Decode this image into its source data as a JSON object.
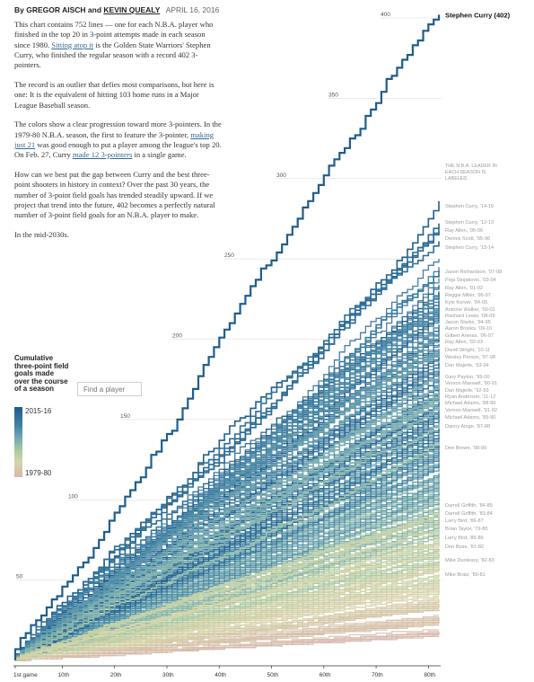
{
  "byline": {
    "prefix": "By",
    "author1": "GREGOR AISCH",
    "and": "and",
    "author2": "KEVIN QUEALY",
    "date": "APRIL 16, 2016"
  },
  "intro": {
    "p1_a": "This chart contains 752 lines — one for each N.B.A. player who finished in the top 20 in 3-point attempts made in each season since 1980. ",
    "p1_link": "Sitting atop it",
    "p1_b": " is the Golden State Warriors' Stephen Curry, who finished the regular season with a record 402 3-pointers.",
    "p2": "The record is an outlier that defies most comparisons, but here is one: It is the equivalent of hitting 103 home runs in a Major League Baseball season.",
    "p3_a": "The colors show a clear progression toward more 3-pointers. In the 1979-80 N.B.A. season, the first to feature the 3-pointer, ",
    "p3_link1": "making just 21",
    "p3_b": " was good enough to put a player among the league's top 20. On Feb. 27, Curry ",
    "p3_link2": "made 12 3-pointers",
    "p3_c": " in a single game.",
    "p4": "How can we best put the gap between Curry and the best three-point shooters in history in context? Over the past 30 years, the number of 3-point field goals has trended steadily upward. If we project that trend into the future, 402 becomes a perfectly natural number of 3-point field goals for an N.B.A. player to make.",
    "p5": "In the mid-2030s."
  },
  "legend": {
    "title": "Cumulative three-point field goals made over the course of a season",
    "top": "2015-16",
    "bottom": "1979-80"
  },
  "search": {
    "placeholder": "Find a player"
  },
  "colors": {
    "latest": "#1f5d8c",
    "earliest": "#d7b7aa",
    "label_grey": "#9a9a9a"
  },
  "chart_data": {
    "type": "line",
    "title": "",
    "xlabel": "",
    "ylabel": "",
    "x_ticks": [
      "1st game",
      "10th",
      "20th",
      "30th",
      "40th",
      "50th",
      "60th",
      "70th",
      "80th"
    ],
    "y_ticks": [
      50,
      100,
      150,
      200,
      250,
      300,
      350,
      400
    ],
    "xlim": [
      1,
      82
    ],
    "ylim": [
      0,
      410
    ],
    "note": "THE N.B.A. LEADER IN EACH SEASON IS LABELED.",
    "series_count": 752,
    "highlight": {
      "name": "Stephen Curry (402)",
      "final": 402
    },
    "leaders": [
      {
        "label": "Stephen Curry, '14-15",
        "final": 286
      },
      {
        "label": "Stephen Curry, '12-13",
        "final": 272
      },
      {
        "label": "Ray Allen, '05-06",
        "final": 269
      },
      {
        "label": "Dennis Scott, '95-96",
        "final": 267
      },
      {
        "label": "Stephen Curry, '13-14",
        "final": 261
      },
      {
        "label": "Jason Richardson, '07-08",
        "final": 243
      },
      {
        "label": "Peja Stojakovic, '03-04",
        "final": 240
      },
      {
        "label": "Ray Allen, '01-02",
        "final": 229
      },
      {
        "label": "Reggie Miller, '96-97",
        "final": 229
      },
      {
        "label": "Kyle Korver, '04-05",
        "final": 226
      },
      {
        "label": "Antoine Walker, '00-01",
        "final": 221
      },
      {
        "label": "Rashard Lewis, '08-09",
        "final": 220
      },
      {
        "label": "Jason Starks, '94-95",
        "final": 217
      },
      {
        "label": "Aaron Brooks, '09-10",
        "final": 209
      },
      {
        "label": "Gilbert Arenas, '06-07",
        "final": 205
      },
      {
        "label": "Ray Allen, '02-03",
        "final": 201
      },
      {
        "label": "Dorell Wright, '10-11",
        "final": 194
      },
      {
        "label": "Wesley Person, '97-98",
        "final": 192
      },
      {
        "label": "Dan Majerle, '93-94",
        "final": 192
      },
      {
        "label": "Gary Payton, '99-00",
        "final": 177
      },
      {
        "label": "Vernon Maxwell, '90-91",
        "final": 172
      },
      {
        "label": "Dan Majerle, '92-93",
        "final": 167
      },
      {
        "label": "Ryan Anderson, '11-12",
        "final": 166
      },
      {
        "label": "Michael Adams, '88-89",
        "final": 166
      },
      {
        "label": "Vernon Maxwell, '91-92",
        "final": 162
      },
      {
        "label": "Michael Adams, '89-90",
        "final": 158
      },
      {
        "label": "Danny Ainge, '87-88",
        "final": 148
      },
      {
        "label": "Dee Brown, '98-99",
        "final": 135
      },
      {
        "label": "Darrell Griffith, '84-85",
        "final": 92
      },
      {
        "label": "Darrell Griffith, '83-84",
        "final": 91
      },
      {
        "label": "Larry Bird, '86-87",
        "final": 90
      },
      {
        "label": "Brian Taylor, '79-80",
        "final": 90
      },
      {
        "label": "Larry Bird, '85-86",
        "final": 82
      },
      {
        "label": "Don Buse, '81-82",
        "final": 73
      },
      {
        "label": "Mike Dunleavy, '82-83",
        "final": 67
      },
      {
        "label": "Mike Bratz, '80-81",
        "final": 57
      }
    ]
  }
}
